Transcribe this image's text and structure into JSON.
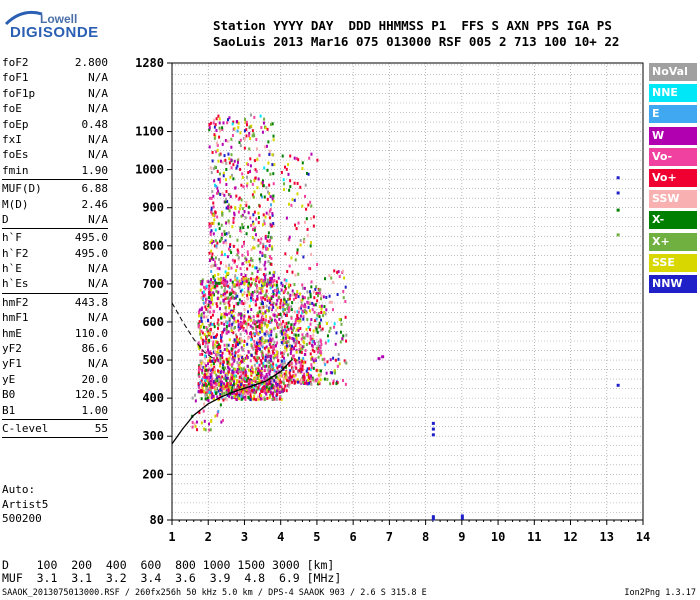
{
  "logo": {
    "line1": "Lowell",
    "line2": "DIGISONDE"
  },
  "header": {
    "line1": "Station YYYY DAY  DDD HHMMSS P1  FFS S AXN PPS IGA PS",
    "line2": "SaoLuis 2013 Mar16 075 013000 RSF 005 2 713 100 10+ 22"
  },
  "params": [
    {
      "k": "foF2",
      "v": "2.800"
    },
    {
      "k": "foF1",
      "v": "N/A"
    },
    {
      "k": "foF1p",
      "v": "N/A"
    },
    {
      "k": "foE",
      "v": "N/A"
    },
    {
      "k": "foEp",
      "v": "0.48"
    },
    {
      "k": "fxI",
      "v": "N/A"
    },
    {
      "k": "foEs",
      "v": "N/A"
    },
    {
      "k": "fmin",
      "v": "1.90"
    },
    {
      "k": "MUF(D)",
      "v": "6.88"
    },
    {
      "k": "M(D)",
      "v": "2.46"
    },
    {
      "k": "D",
      "v": "N/A"
    },
    {
      "k": "h`F",
      "v": "495.0"
    },
    {
      "k": "h`F2",
      "v": "495.0"
    },
    {
      "k": "h`E",
      "v": "N/A"
    },
    {
      "k": "h`Es",
      "v": "N/A"
    },
    {
      "k": "hmF2",
      "v": "443.8"
    },
    {
      "k": "hmF1",
      "v": "N/A"
    },
    {
      "k": "hmE",
      "v": "110.0"
    },
    {
      "k": "yF2",
      "v": "86.6"
    },
    {
      "k": "yF1",
      "v": "N/A"
    },
    {
      "k": "yE",
      "v": "20.0"
    },
    {
      "k": "B0",
      "v": "120.5"
    },
    {
      "k": "B1",
      "v": "1.00"
    },
    {
      "k": "C-level",
      "v": "55"
    }
  ],
  "auto": {
    "l1": "Auto:",
    "l2": "Artist5",
    "l3": "500200"
  },
  "legend": [
    {
      "label": "NoVal",
      "color": "#a0a0a0"
    },
    {
      "label": "NNE",
      "color": "#00e8f8"
    },
    {
      "label": "E",
      "color": "#40a8f0"
    },
    {
      "label": "W",
      "color": "#b000b0"
    },
    {
      "label": "Vo-",
      "color": "#f040a0"
    },
    {
      "label": "Vo+",
      "color": "#f00030"
    },
    {
      "label": "SSW",
      "color": "#f8b0b0"
    },
    {
      "label": "X-",
      "color": "#008000"
    },
    {
      "label": "X+",
      "color": "#70b040"
    },
    {
      "label": "SSE",
      "color": "#d8d800"
    },
    {
      "label": "NNW",
      "color": "#2020c8"
    }
  ],
  "muf_table": {
    "row1": "D    100  200  400  600  800 1000 1500 3000 [km]",
    "row2": "MUF  3.1  3.1  3.2  3.4  3.6  3.9  4.8  6.9 [MHz]"
  },
  "footer": {
    "left": "SAAOK_2013075013000.RSF / 260fx256h 50 kHz 5.0 km / DPS-4 SAAOK 903 / 2.6 S 315.8 E",
    "right": "Ion2Png 1.3.17"
  },
  "chart_data": {
    "type": "scatter",
    "title": "",
    "xlabel": "",
    "ylabel": "",
    "xlim": [
      1,
      14
    ],
    "ylim": [
      80,
      1280
    ],
    "x_ticks": [
      1,
      2,
      3,
      4,
      5,
      6,
      7,
      8,
      9,
      10,
      11,
      12,
      13,
      14
    ],
    "y_ticks": [
      80,
      200,
      300,
      400,
      500,
      600,
      700,
      800,
      900,
      1000,
      1100,
      1280
    ],
    "grid": true,
    "profile_curve": {
      "name": "",
      "x": [
        1.0,
        1.3,
        1.6,
        2.0,
        2.4,
        2.8,
        3.2,
        3.6,
        4.0,
        4.3
      ],
      "y": [
        280,
        320,
        355,
        385,
        405,
        420,
        432,
        445,
        470,
        500
      ]
    },
    "trace_dashed": {
      "name": "",
      "x": [
        1.0,
        1.3,
        1.6,
        1.9,
        2.2
      ],
      "y": [
        650,
        600,
        555,
        520,
        500
      ]
    },
    "scatter_clusters": [
      {
        "x0": 1.7,
        "x1": 4.2,
        "y0": 420,
        "y1": 720,
        "n": 1500
      },
      {
        "x0": 2.0,
        "x1": 3.8,
        "y0": 700,
        "y1": 1150,
        "n": 550
      },
      {
        "x0": 4.2,
        "x1": 5.1,
        "y0": 440,
        "y1": 700,
        "n": 350
      },
      {
        "x0": 4.0,
        "x1": 5.0,
        "y0": 700,
        "y1": 1060,
        "n": 80
      },
      {
        "x0": 5.0,
        "x1": 5.8,
        "y0": 440,
        "y1": 740,
        "n": 90
      },
      {
        "x0": 1.9,
        "x1": 4.0,
        "y0": 400,
        "y1": 460,
        "n": 250
      },
      {
        "x0": 1.5,
        "x1": 2.4,
        "y0": 320,
        "y1": 440,
        "n": 40
      }
    ],
    "isolated_points": [
      {
        "x": 13.3,
        "y": 980,
        "series": "NNW"
      },
      {
        "x": 13.3,
        "y": 940,
        "series": "NNW"
      },
      {
        "x": 13.3,
        "y": 895,
        "series": "X-"
      },
      {
        "x": 13.3,
        "y": 830,
        "series": "X+"
      },
      {
        "x": 13.3,
        "y": 435,
        "series": "NNW"
      },
      {
        "x": 8.2,
        "y": 335,
        "series": "NNW"
      },
      {
        "x": 8.2,
        "y": 320,
        "series": "NNW"
      },
      {
        "x": 8.2,
        "y": 305,
        "series": "NNW"
      },
      {
        "x": 8.2,
        "y": 90,
        "series": "NNW"
      },
      {
        "x": 8.2,
        "y": 84,
        "series": "NNW"
      },
      {
        "x": 9.0,
        "y": 92,
        "series": "NNW"
      },
      {
        "x": 9.0,
        "y": 86,
        "series": "NNW"
      },
      {
        "x": 6.8,
        "y": 510,
        "series": "W"
      },
      {
        "x": 6.7,
        "y": 505,
        "series": "W"
      }
    ]
  }
}
